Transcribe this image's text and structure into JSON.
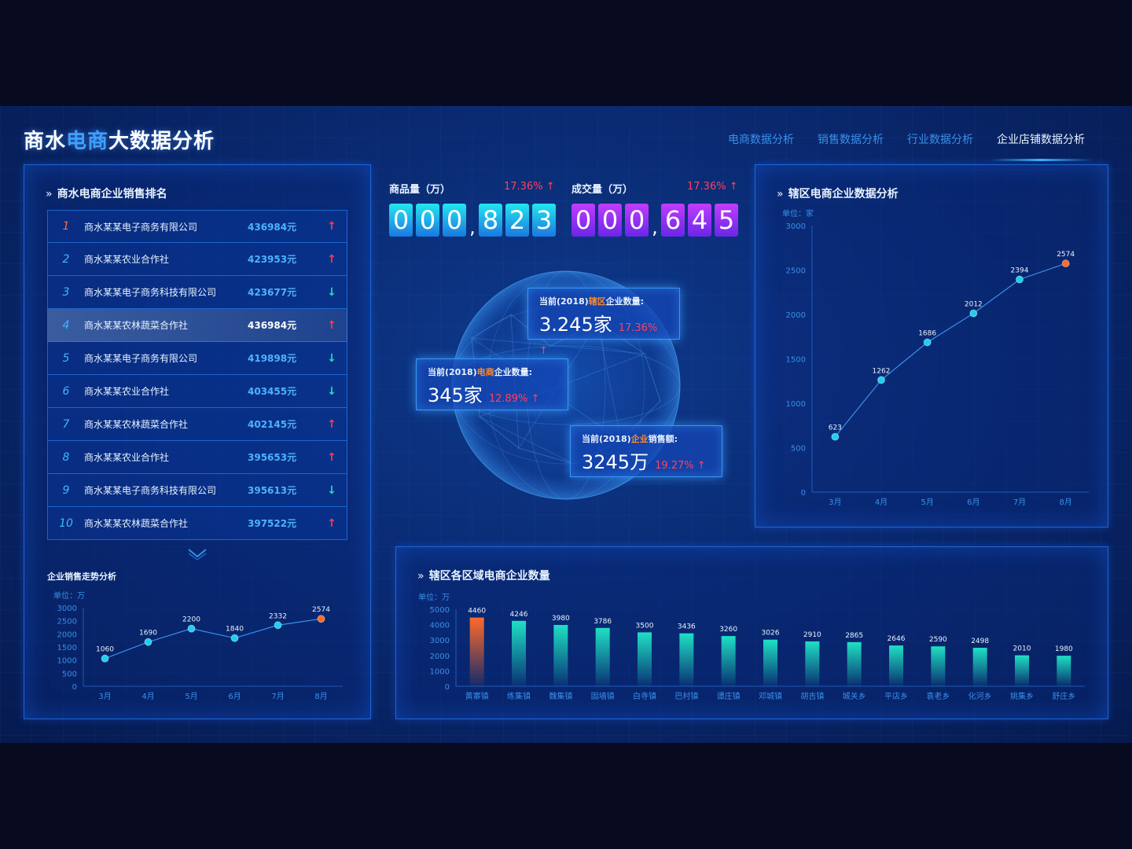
{
  "header": {
    "title_part1": "商水",
    "title_part2": "电商",
    "title_part3": "大数据分析",
    "nav": [
      {
        "label": "电商数据分析",
        "active": false
      },
      {
        "label": "销售数据分析",
        "active": false
      },
      {
        "label": "行业数据分析",
        "active": false
      },
      {
        "label": "企业店铺数据分析",
        "active": true
      }
    ]
  },
  "ranking": {
    "title": "商水电商企业销售排名",
    "rows": [
      {
        "no": "1",
        "name": "商水某某电子商务有限公司",
        "value": "436984元",
        "trend": "up"
      },
      {
        "no": "2",
        "name": "商水某某农业合作社",
        "value": "423953元",
        "trend": "up"
      },
      {
        "no": "3",
        "name": "商水某某电子商务科技有限公司",
        "value": "423677元",
        "trend": "down"
      },
      {
        "no": "4",
        "name": "商水某某农林蔬菜合作社",
        "value": "436984元",
        "trend": "up"
      },
      {
        "no": "5",
        "name": "商水某某电子商务有限公司",
        "value": "419898元",
        "trend": "down"
      },
      {
        "no": "6",
        "name": "商水某某农业合作社",
        "value": "403455元",
        "trend": "down"
      },
      {
        "no": "7",
        "name": "商水某某农林蔬菜合作社",
        "value": "402145元",
        "trend": "up"
      },
      {
        "no": "8",
        "name": "商水某某农业合作社",
        "value": "395653元",
        "trend": "up"
      },
      {
        "no": "9",
        "name": "商水某某电子商务科技有限公司",
        "value": "395613元",
        "trend": "down"
      },
      {
        "no": "10",
        "name": "商水某某农林蔬菜合作社",
        "value": "397522元",
        "trend": "up"
      }
    ]
  },
  "stats": {
    "goods": {
      "label": "商品量（万）",
      "pct": "17.36%",
      "digits": [
        "0",
        "0",
        "0",
        "8",
        "2",
        "3"
      ]
    },
    "deals": {
      "label": "成交量（万）",
      "pct": "17.36%",
      "digits": [
        "0",
        "0",
        "0",
        "6",
        "4",
        "5"
      ]
    }
  },
  "info_boxes": [
    {
      "label_pre": "当前(2018)",
      "label_hl": "辖区",
      "label_post": "企业数量:",
      "value": "3.245家",
      "pct": "17.36%"
    },
    {
      "label_pre": "当前(2018)",
      "label_hl": "电商",
      "label_post": "企业数量:",
      "value": "345家",
      "pct": "12.89%"
    },
    {
      "label_pre": "当前(2018)",
      "label_hl": "企业",
      "label_post": "销售额:",
      "value": "3245万",
      "pct": "19.27%"
    }
  ],
  "icons": {
    "up": "arrow-up-icon",
    "down": "arrow-down-icon",
    "chevrons": "double-chevron-right-icon",
    "expand": "chevron-down-icon"
  },
  "chart_data": [
    {
      "id": "trend",
      "type": "line",
      "title": "企业销售走势分析",
      "unit": "单位：万",
      "categories": [
        "3月",
        "4月",
        "5月",
        "6月",
        "7月",
        "8月"
      ],
      "values": [
        1060,
        1690,
        2200,
        1840,
        2332,
        2574
      ],
      "ylim": [
        0,
        3000
      ],
      "yticks": [
        0,
        500,
        1000,
        1500,
        2000,
        2500,
        3000
      ],
      "colors": {
        "line": "#3a8fe8",
        "point": "#1ed0f0",
        "last_point": "#ff6a2a"
      }
    },
    {
      "id": "district",
      "type": "line",
      "title": "辖区电商企业数据分析",
      "unit": "单位：家",
      "categories": [
        "3月",
        "4月",
        "5月",
        "6月",
        "7月",
        "8月"
      ],
      "values": [
        623,
        1262,
        1686,
        2012,
        2394,
        2574
      ],
      "ylim": [
        0,
        3000
      ],
      "yticks": [
        0,
        500,
        1000,
        1500,
        2000,
        2500,
        3000
      ],
      "colors": {
        "line": "#3a8fe8",
        "point": "#1ed0f0",
        "last_point": "#ff6a2a"
      }
    },
    {
      "id": "regions",
      "type": "bar",
      "title": "辖区各区域电商企业数量",
      "unit": "单位：万",
      "categories": [
        "黄寨镇",
        "练集镇",
        "魏集镇",
        "固墙镇",
        "白寺镇",
        "巴村镇",
        "谭庄镇",
        "邓城镇",
        "胡吉镇",
        "城关乡",
        "平店乡",
        "袁老乡",
        "化河乡",
        "姚集乡",
        "舒庄乡"
      ],
      "values": [
        4460,
        4246,
        3980,
        3786,
        3500,
        3436,
        3260,
        3026,
        2910,
        2865,
        2646,
        2590,
        2498,
        2010,
        1980
      ],
      "ylim": [
        0,
        5000
      ],
      "yticks": [
        0,
        1000,
        2000,
        3000,
        4000,
        5000
      ],
      "colors": {
        "bar": "#1fe0c4",
        "highlight": "#ff6a2a"
      }
    }
  ]
}
